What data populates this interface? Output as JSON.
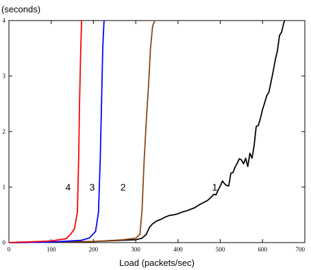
{
  "chart_data": {
    "type": "line",
    "ylabel": "(seconds)",
    "xlabel": "Load (packets/sec)",
    "xlim": [
      0,
      700
    ],
    "ylim": [
      0,
      4
    ],
    "x_ticks": [
      0,
      100,
      200,
      300,
      400,
      500,
      600,
      700
    ],
    "y_ticks": [
      0,
      1,
      2,
      3,
      4
    ],
    "grid": false,
    "series": [
      {
        "name": "1",
        "color": "#000000",
        "label_at": [
          487,
          1.0
        ],
        "points": [
          [
            0,
            0.0
          ],
          [
            100,
            0.01
          ],
          [
            200,
            0.02
          ],
          [
            300,
            0.05
          ],
          [
            315,
            0.08
          ],
          [
            325,
            0.15
          ],
          [
            333,
            0.28
          ],
          [
            340,
            0.34
          ],
          [
            350,
            0.39
          ],
          [
            360,
            0.42
          ],
          [
            370,
            0.46
          ],
          [
            380,
            0.49
          ],
          [
            390,
            0.5
          ],
          [
            400,
            0.52
          ],
          [
            410,
            0.55
          ],
          [
            420,
            0.57
          ],
          [
            430,
            0.6
          ],
          [
            440,
            0.63
          ],
          [
            450,
            0.68
          ],
          [
            460,
            0.72
          ],
          [
            470,
            0.76
          ],
          [
            480,
            0.83
          ],
          [
            485,
            0.87
          ],
          [
            490,
            0.86
          ],
          [
            495,
            0.95
          ],
          [
            500,
            1.02
          ],
          [
            505,
            1.11
          ],
          [
            510,
            1.06
          ],
          [
            515,
            1.03
          ],
          [
            520,
            1.02
          ],
          [
            525,
            1.25
          ],
          [
            530,
            1.26
          ],
          [
            535,
            1.36
          ],
          [
            540,
            1.43
          ],
          [
            545,
            1.51
          ],
          [
            550,
            1.49
          ],
          [
            555,
            1.42
          ],
          [
            560,
            1.52
          ],
          [
            565,
            1.37
          ],
          [
            570,
            1.61
          ],
          [
            575,
            1.52
          ],
          [
            580,
            1.74
          ],
          [
            585,
            2.09
          ],
          [
            590,
            2.11
          ],
          [
            595,
            2.24
          ],
          [
            600,
            2.4
          ],
          [
            605,
            2.52
          ],
          [
            610,
            2.65
          ],
          [
            615,
            2.71
          ],
          [
            620,
            2.89
          ],
          [
            625,
            3.08
          ],
          [
            630,
            3.29
          ],
          [
            635,
            3.45
          ],
          [
            640,
            3.73
          ],
          [
            645,
            3.79
          ],
          [
            650,
            3.95
          ],
          [
            652,
            4.0
          ]
        ]
      },
      {
        "name": "2",
        "color": "#8b4513",
        "label_at": [
          270,
          1.0
        ],
        "points": [
          [
            0,
            0.0
          ],
          [
            100,
            0.01
          ],
          [
            200,
            0.02
          ],
          [
            270,
            0.05
          ],
          [
            300,
            0.08
          ],
          [
            310,
            0.15
          ],
          [
            315,
            0.6
          ],
          [
            320,
            1.5
          ],
          [
            325,
            2.2
          ],
          [
            330,
            2.8
          ],
          [
            335,
            3.5
          ],
          [
            340,
            3.9
          ],
          [
            345,
            4.0
          ]
        ]
      },
      {
        "name": "3",
        "color": "#0000ff",
        "label_at": [
          197,
          1.0
        ],
        "points": [
          [
            0,
            0.0
          ],
          [
            100,
            0.01
          ],
          [
            170,
            0.04
          ],
          [
            190,
            0.08
          ],
          [
            205,
            0.2
          ],
          [
            212,
            0.55
          ],
          [
            216,
            1.5
          ],
          [
            219,
            2.5
          ],
          [
            222,
            3.5
          ],
          [
            225,
            4.0
          ]
        ]
      },
      {
        "name": "4",
        "color": "#ff0000",
        "label_at": [
          140,
          1.0
        ],
        "points": [
          [
            0,
            0.0
          ],
          [
            100,
            0.03
          ],
          [
            135,
            0.07
          ],
          [
            145,
            0.14
          ],
          [
            155,
            0.25
          ],
          [
            162,
            0.55
          ],
          [
            165,
            1.5
          ],
          [
            167,
            2.5
          ],
          [
            170,
            3.5
          ],
          [
            172,
            4.0
          ]
        ]
      }
    ]
  }
}
